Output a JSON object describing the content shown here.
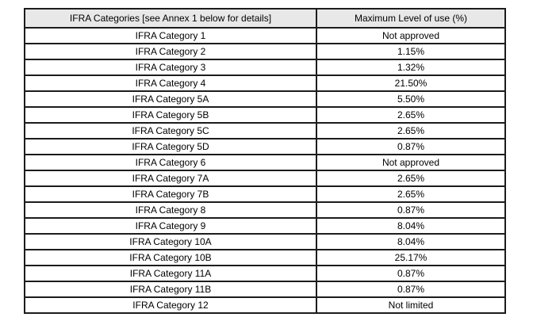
{
  "table": {
    "headers": {
      "categories": "IFRA Categories [see Annex 1 below for details]",
      "max_level": "Maximum Level of use (%)"
    },
    "rows": [
      {
        "category": "IFRA Category 1",
        "value": "Not approved"
      },
      {
        "category": "IFRA Category 2",
        "value": "1.15%"
      },
      {
        "category": "IFRA Category 3",
        "value": "1.32%"
      },
      {
        "category": "IFRA Category 4",
        "value": "21.50%"
      },
      {
        "category": "IFRA Category 5A",
        "value": "5.50%"
      },
      {
        "category": "IFRA Category 5B",
        "value": "2.65%"
      },
      {
        "category": "IFRA Category 5C",
        "value": "2.65%"
      },
      {
        "category": "IFRA Category 5D",
        "value": "0.87%"
      },
      {
        "category": "IFRA Category 6",
        "value": "Not approved"
      },
      {
        "category": "IFRA Category 7A",
        "value": "2.65%"
      },
      {
        "category": "IFRA Category 7B",
        "value": "2.65%"
      },
      {
        "category": "IFRA Category 8",
        "value": "0.87%"
      },
      {
        "category": "IFRA Category 9",
        "value": "8.04%"
      },
      {
        "category": "IFRA Category 10A",
        "value": "8.04%"
      },
      {
        "category": "IFRA Category 10B",
        "value": "25.17%"
      },
      {
        "category": "IFRA Category 11A",
        "value": "0.87%"
      },
      {
        "category": "IFRA Category 11B",
        "value": "0.87%"
      },
      {
        "category": "IFRA Category 12",
        "value": "Not limited"
      }
    ],
    "colors": {
      "header_bg": "#e8e8e8",
      "border": "#1c1c1c",
      "text": "#000000",
      "page_bg": "#ffffff"
    }
  }
}
